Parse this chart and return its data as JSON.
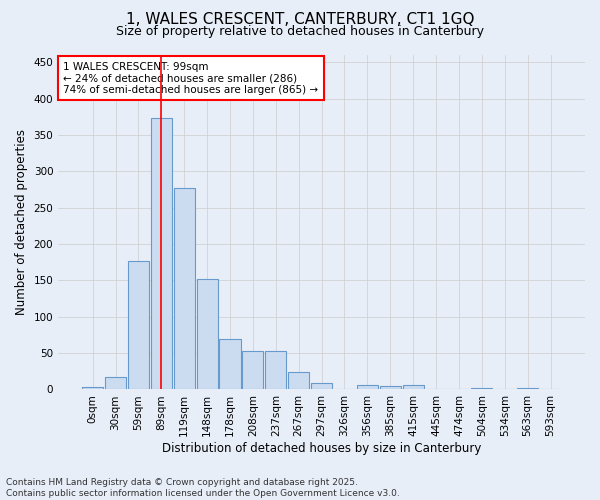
{
  "title_line1": "1, WALES CRESCENT, CANTERBURY, CT1 1GQ",
  "title_line2": "Size of property relative to detached houses in Canterbury",
  "xlabel": "Distribution of detached houses by size in Canterbury",
  "ylabel": "Number of detached properties",
  "bar_labels": [
    "0sqm",
    "30sqm",
    "59sqm",
    "89sqm",
    "119sqm",
    "148sqm",
    "178sqm",
    "208sqm",
    "237sqm",
    "267sqm",
    "297sqm",
    "326sqm",
    "356sqm",
    "385sqm",
    "415sqm",
    "445sqm",
    "474sqm",
    "504sqm",
    "534sqm",
    "563sqm",
    "593sqm"
  ],
  "bar_values": [
    3,
    17,
    176,
    373,
    277,
    152,
    70,
    53,
    53,
    24,
    9,
    0,
    6,
    5,
    6,
    0,
    0,
    2,
    0,
    2,
    0
  ],
  "bar_color": "#ccdcf0",
  "bar_edge_color": "#6699cc",
  "vline_color": "red",
  "vline_x": 3.0,
  "annotation_text": "1 WALES CRESCENT: 99sqm\n← 24% of detached houses are smaller (286)\n74% of semi-detached houses are larger (865) →",
  "annotation_box_color": "white",
  "annotation_box_edge_color": "red",
  "ylim": [
    0,
    460
  ],
  "yticks": [
    0,
    50,
    100,
    150,
    200,
    250,
    300,
    350,
    400,
    450
  ],
  "grid_color": "#cccccc",
  "background_color": "#e8eef8",
  "footnote": "Contains HM Land Registry data © Crown copyright and database right 2025.\nContains public sector information licensed under the Open Government Licence v3.0.",
  "title_fontsize": 11,
  "subtitle_fontsize": 9,
  "axis_label_fontsize": 8.5,
  "tick_fontsize": 7.5,
  "annotation_fontsize": 7.5,
  "footnote_fontsize": 6.5
}
